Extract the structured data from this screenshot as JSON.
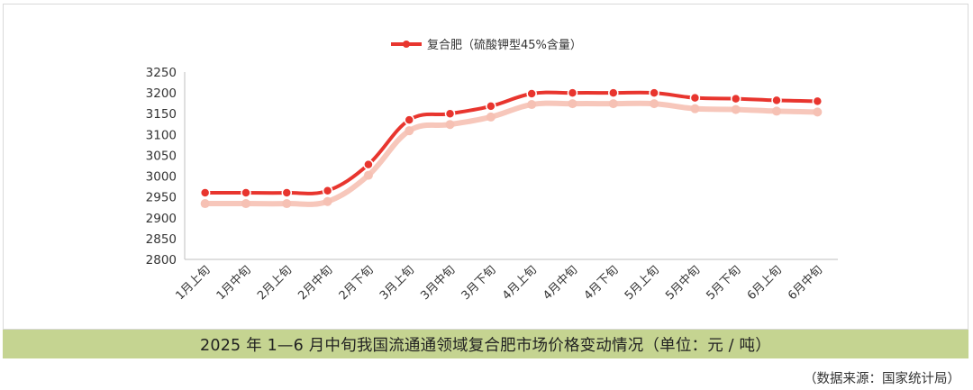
{
  "caption": "2025 年 1—6 月中旬我国流通通领域复合肥市场价格变动情况（单位：元 / 吨）",
  "source": "（数据来源：国家统计局）",
  "colors": {
    "line": "#e8352e",
    "shadow": "#f6c1b4",
    "axis": "#bfbfbf",
    "caption_bg": "#c5d491"
  },
  "chart_data": {
    "type": "line",
    "title": "",
    "xlabel": "",
    "ylabel": "",
    "ylim": [
      2800,
      3250
    ],
    "yticks": [
      2800,
      2850,
      2900,
      2950,
      3000,
      3050,
      3100,
      3150,
      3200,
      3250
    ],
    "grid": false,
    "legend": "top-center",
    "categories": [
      "1月上旬",
      "1月中旬",
      "2月上旬",
      "2月中旬",
      "2月下旬",
      "3月上旬",
      "3月中旬",
      "3月下旬",
      "4月上旬",
      "4月中旬",
      "4月下旬",
      "5月上旬",
      "5月中旬",
      "5月下旬",
      "6月上旬",
      "6月中旬"
    ],
    "series": [
      {
        "name": "复合肥（硫酸钾型45%含量）",
        "values": [
          2960,
          2960,
          2960,
          2965,
          3028,
          3135,
          3150,
          3168,
          3198,
          3200,
          3200,
          3200,
          3188,
          3186,
          3182,
          3180
        ]
      }
    ]
  }
}
